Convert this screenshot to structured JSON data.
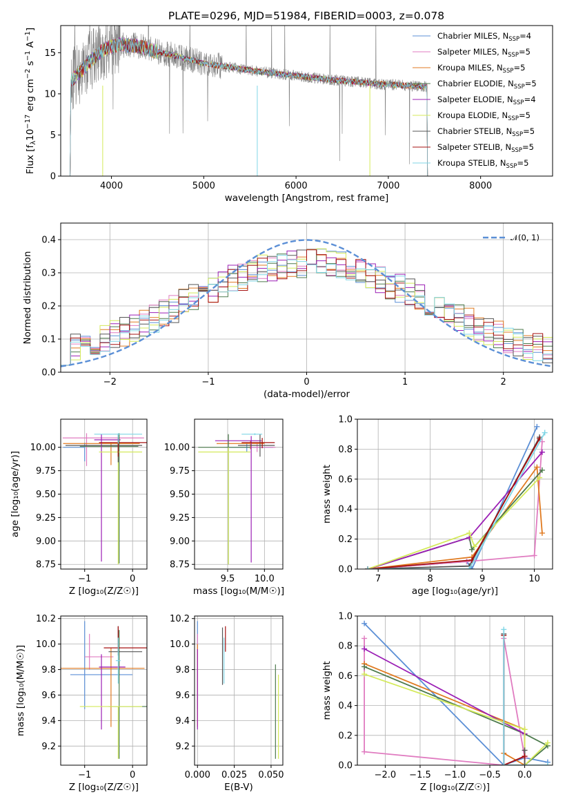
{
  "title": "PLATE=0296, MJD=51984, FIBERID=0003, z=0.078",
  "colors": {
    "Chabrier MILES": "#5b8fd6",
    "Salpeter MILES": "#e07bc0",
    "Kroupa MILES": "#e07a20",
    "Chabrier ELODIE": "#4c7a4c",
    "Salpeter ELODIE": "#9b1fb5",
    "Kroupa ELODIE": "#d4ea5a",
    "Chabrier STELIB": "#555555",
    "Salpeter STELIB": "#a51010",
    "Kroupa STELIB": "#7fd6e6",
    "data": "#808080",
    "gauss": "#5b8fd6"
  },
  "legend1": [
    {
      "text": "Chabrier MILES, N",
      "sub": "SSP",
      "tail": "=4",
      "key": "Chabrier MILES"
    },
    {
      "text": "Salpeter MILES, N",
      "sub": "SSP",
      "tail": "=5",
      "key": "Salpeter MILES"
    },
    {
      "text": "Kroupa MILES, N",
      "sub": "SSP",
      "tail": "=5",
      "key": "Kroupa MILES"
    },
    {
      "text": "Chabrier ELODIE, N",
      "sub": "SSP",
      "tail": "=5",
      "key": "Chabrier ELODIE"
    },
    {
      "text": "Salpeter ELODIE, N",
      "sub": "SSP",
      "tail": "=4",
      "key": "Salpeter ELODIE"
    },
    {
      "text": "Kroupa ELODIE, N",
      "sub": "SSP",
      "tail": "=5",
      "key": "Kroupa ELODIE"
    },
    {
      "text": "Chabrier STELIB, N",
      "sub": "SSP",
      "tail": "=5",
      "key": "Chabrier STELIB"
    },
    {
      "text": "Salpeter STELIB, N",
      "sub": "SSP",
      "tail": "=5",
      "key": "Salpeter STELIB"
    },
    {
      "text": "Kroupa STELIB, N",
      "sub": "SSP",
      "tail": "=5",
      "key": "Kroupa STELIB"
    }
  ],
  "legend2": "𝒩(0, 1)",
  "chart_data": [
    {
      "id": "spectrum",
      "type": "line",
      "xlabel": "wavelength [Angstrom, rest frame]",
      "ylabel_parts": [
        "Flux [f",
        "λ",
        "10",
        "−17",
        " erg cm",
        "−2",
        " s",
        "−1",
        " A",
        "−1",
        "]"
      ],
      "xlim": [
        3450,
        8780
      ],
      "ylim": [
        0,
        18.3
      ],
      "xticks": [
        4000,
        5000,
        6000,
        7000,
        8000
      ],
      "yticks": [
        0,
        5,
        10,
        15
      ],
      "continuum": [
        [
          3550,
          11.5
        ],
        [
          3650,
          12.5
        ],
        [
          3750,
          13.8
        ],
        [
          3850,
          14.8
        ],
        [
          3950,
          15.6
        ],
        [
          4100,
          16.0
        ],
        [
          4300,
          15.8
        ],
        [
          4500,
          15.1
        ],
        [
          4700,
          14.6
        ],
        [
          5000,
          13.7
        ],
        [
          5300,
          13.2
        ],
        [
          5600,
          12.7
        ],
        [
          6000,
          12.2
        ],
        [
          6300,
          11.8
        ],
        [
          6600,
          11.5
        ],
        [
          6900,
          11.2
        ],
        [
          7200,
          11.0
        ],
        [
          7400,
          10.9
        ],
        [
          7600,
          10.7
        ],
        [
          8000,
          10.5
        ],
        [
          8400,
          10.3
        ],
        [
          8780,
          10.2
        ]
      ]
    },
    {
      "id": "residuals",
      "type": "step-histogram",
      "xlabel": "(data-model)/error",
      "ylabel": "Normed distribution",
      "xlim": [
        -2.5,
        2.5
      ],
      "ylim": [
        0,
        0.45
      ],
      "xticks": [
        -2,
        -1,
        0,
        1,
        2
      ],
      "yticks": [
        0.0,
        0.1,
        0.2,
        0.3,
        0.4
      ],
      "bin_width": 0.1,
      "gaussian": {
        "mu": 0,
        "sigma": 1
      }
    },
    {
      "id": "age-vs-Z",
      "type": "errorbar",
      "xlabel": "Z [log₁₀(Z/Z☉)]",
      "ylabel": "age  [log₁₀(age/yr)]",
      "xlim": [
        -1.5,
        0.3
      ],
      "ylim": [
        8.7,
        10.3
      ],
      "xticks": [
        -1,
        0
      ],
      "yticks": [
        8.75,
        9.0,
        9.25,
        9.5,
        9.75,
        10.0
      ],
      "points": [
        {
          "model": "Chabrier MILES",
          "x": -1.0,
          "xerr": [
            0.45,
            0.0
          ],
          "y": 10.0,
          "yerr": [
            0.15,
            0.05
          ]
        },
        {
          "model": "Salpeter MILES",
          "x": -0.96,
          "xerr": [
            0.5,
            1.2
          ],
          "y": 10.1,
          "yerr": [
            0.3,
            0.05
          ]
        },
        {
          "model": "Kroupa MILES",
          "x": -0.45,
          "xerr": [
            1.0,
            0.6
          ],
          "y": 10.04,
          "yerr": [
            0.23,
            0.01
          ]
        },
        {
          "model": "Chabrier ELODIE",
          "x": -0.28,
          "xerr": [
            0.82,
            0.4
          ],
          "y": 10.01,
          "yerr": [
            1.25,
            0.14
          ]
        },
        {
          "model": "Salpeter ELODIE",
          "x": -0.65,
          "xerr": [
            0.15,
            0.4
          ],
          "y": 10.08,
          "yerr": [
            1.3,
            0.06
          ]
        },
        {
          "model": "Kroupa ELODIE",
          "x": -0.3,
          "xerr": [
            0.4,
            0.5
          ],
          "y": 9.95,
          "yerr": [
            1.2,
            0.05
          ]
        },
        {
          "model": "Chabrier STELIB",
          "x": -0.3,
          "xerr": [
            1.1,
            0.5
          ],
          "y": 10.02,
          "yerr": [
            0.18,
            0.12
          ]
        },
        {
          "model": "Salpeter STELIB",
          "x": -0.3,
          "xerr": [
            0.4,
            0.6
          ],
          "y": 10.05,
          "yerr": [
            0.15,
            0.05
          ]
        },
        {
          "model": "Kroupa STELIB",
          "x": -0.3,
          "xerr": [
            0.5,
            0.5
          ],
          "y": 10.14,
          "yerr": [
            0.1,
            0.01
          ]
        }
      ]
    },
    {
      "id": "age-vs-mass",
      "type": "errorbar",
      "xlabel": "mass [log₁₀(M/M☉)]",
      "ylabel": "",
      "xlim": [
        9.05,
        10.25
      ],
      "ylim": [
        8.7,
        10.3
      ],
      "xticks": [
        9.5,
        10.0
      ],
      "yticks": [
        8.75,
        9.0,
        9.25,
        9.5,
        9.75,
        10.0
      ],
      "points": [
        {
          "model": "Chabrier MILES",
          "x": 9.76,
          "xerr": [
            0.27,
            0.36
          ],
          "y": 10.0,
          "yerr": [
            0.05,
            0.05
          ]
        },
        {
          "model": "Salpeter MILES",
          "x": 9.9,
          "xerr": [
            0.1,
            0.25
          ],
          "y": 10.0,
          "yerr": [
            0.05,
            0.05
          ]
        },
        {
          "model": "Kroupa MILES",
          "x": 9.81,
          "xerr": [
            0.46,
            0.19
          ],
          "y": 10.04,
          "yerr": [
            0.06,
            0.03
          ]
        },
        {
          "model": "Chabrier ELODIE",
          "x": 9.51,
          "xerr": [
            0.41,
            0.3
          ],
          "y": 10.0,
          "yerr": [
            1.25,
            0.14
          ]
        },
        {
          "model": "Salpeter ELODIE",
          "x": 9.82,
          "xerr": [
            0.49,
            0.14
          ],
          "y": 10.07,
          "yerr": [
            1.3,
            0.05
          ]
        },
        {
          "model": "Kroupa ELODIE",
          "x": 9.51,
          "xerr": [
            0.41,
            0.3
          ],
          "y": 9.95,
          "yerr": [
            1.2,
            0.05
          ]
        },
        {
          "model": "Chabrier STELIB",
          "x": 9.94,
          "xerr": [
            0.3,
            0.2
          ],
          "y": 10.02,
          "yerr": [
            0.12,
            0.12
          ]
        },
        {
          "model": "Salpeter STELIB",
          "x": 9.97,
          "xerr": [
            0.28,
            0.17
          ],
          "y": 10.05,
          "yerr": [
            0.06,
            0.05
          ]
        },
        {
          "model": "Kroupa STELIB",
          "x": 9.87,
          "xerr": [
            0.18,
            0.1
          ],
          "y": 10.14,
          "yerr": [
            0.01,
            0.01
          ]
        }
      ]
    },
    {
      "id": "weight-vs-age",
      "type": "line",
      "xlabel": "age  [log₁₀(age/yr)]",
      "ylabel": "mass weight",
      "xlim": [
        6.6,
        10.35
      ],
      "ylim": [
        0,
        1.0
      ],
      "xticks": [
        7,
        8,
        9,
        10
      ],
      "yticks": [
        0.0,
        0.2,
        0.4,
        0.6,
        0.8,
        1.0
      ],
      "series": [
        {
          "model": "Chabrier MILES",
          "x": [
            6.8,
            8.7,
            8.8,
            10.05
          ],
          "y": [
            0.0,
            0.05,
            0.0,
            0.95
          ]
        },
        {
          "model": "Salpeter MILES",
          "x": [
            6.8,
            8.7,
            10.0,
            10.15
          ],
          "y": [
            0.0,
            0.05,
            0.09,
            0.85
          ]
        },
        {
          "model": "Kroupa MILES",
          "x": [
            6.8,
            8.8,
            10.05,
            10.15
          ],
          "y": [
            0.0,
            0.08,
            0.68,
            0.24
          ]
        },
        {
          "model": "Chabrier ELODIE",
          "x": [
            6.8,
            8.75,
            8.8,
            10.15
          ],
          "y": [
            0.0,
            0.21,
            0.13,
            0.66
          ]
        },
        {
          "model": "Salpeter ELODIE",
          "x": [
            6.8,
            8.75,
            10.15
          ],
          "y": [
            0.0,
            0.21,
            0.78
          ]
        },
        {
          "model": "Kroupa ELODIE",
          "x": [
            6.8,
            8.75,
            8.85,
            10.1
          ],
          "y": [
            0.0,
            0.24,
            0.15,
            0.61
          ]
        },
        {
          "model": "Chabrier STELIB",
          "x": [
            6.8,
            8.75,
            10.1
          ],
          "y": [
            0.0,
            0.02,
            0.88
          ]
        },
        {
          "model": "Salpeter STELIB",
          "x": [
            6.8,
            8.8,
            10.1
          ],
          "y": [
            0.0,
            0.06,
            0.87
          ]
        },
        {
          "model": "Kroupa STELIB",
          "x": [
            6.8,
            8.75,
            10.2
          ],
          "y": [
            0.0,
            0.0,
            0.91
          ]
        }
      ]
    },
    {
      "id": "mass-vs-Z",
      "type": "errorbar",
      "xlabel": "Z [log₁₀(Z/Z☉)]",
      "ylabel": "mass [log₁₀(M/M☉)]",
      "xlim": [
        -1.5,
        0.3
      ],
      "ylim": [
        9.05,
        10.22
      ],
      "xticks": [
        -1,
        0
      ],
      "yticks": [
        9.2,
        9.4,
        9.6,
        9.8,
        10.0,
        10.2
      ],
      "points": [
        {
          "model": "Chabrier MILES",
          "x": -1.0,
          "xerr": [
            0.3,
            1.0
          ],
          "y": 9.76,
          "yerr": [
            0.27,
            0.42
          ]
        },
        {
          "model": "Salpeter MILES",
          "x": -0.9,
          "xerr": [
            0.1,
            0.5
          ],
          "y": 9.9,
          "yerr": [
            0.1,
            0.18
          ]
        },
        {
          "model": "Kroupa MILES",
          "x": -0.45,
          "xerr": [
            1.05,
            0.7
          ],
          "y": 9.81,
          "yerr": [
            0.46,
            0.16
          ]
        },
        {
          "model": "Chabrier ELODIE",
          "x": -0.28,
          "xerr": [
            0.22,
            0.58
          ],
          "y": 9.51,
          "yerr": [
            0.41,
            0.6
          ]
        },
        {
          "model": "Salpeter ELODIE",
          "x": -0.65,
          "xerr": [
            0.05,
            0.5
          ],
          "y": 9.82,
          "yerr": [
            0.49,
            0.1
          ]
        },
        {
          "model": "Kroupa ELODIE",
          "x": -0.3,
          "xerr": [
            0.8,
            0.5
          ],
          "y": 9.51,
          "yerr": [
            0.41,
            0.0
          ]
        },
        {
          "model": "Chabrier STELIB",
          "x": -0.3,
          "xerr": [
            0.2,
            0.5
          ],
          "y": 9.94,
          "yerr": [
            0.03,
            0.2
          ]
        },
        {
          "model": "Salpeter STELIB",
          "x": -0.3,
          "xerr": [
            0.3,
            0.6
          ],
          "y": 9.97,
          "yerr": [
            0.03,
            0.17
          ]
        },
        {
          "model": "Kroupa STELIB",
          "x": -0.3,
          "xerr": [
            0.05,
            0.05
          ],
          "y": 9.87,
          "yerr": [
            0.18,
            0.18
          ]
        }
      ]
    },
    {
      "id": "mass-vs-ebv",
      "type": "errorbar",
      "xlabel": "E(B-V)",
      "ylabel": "",
      "xlim": [
        -0.002,
        0.058
      ],
      "ylim": [
        9.05,
        10.22
      ],
      "xticks": [
        0.0,
        0.025,
        0.05
      ],
      "xticklabels": [
        "0.000",
        "0.025",
        "0.050"
      ],
      "yticks": [
        9.2,
        9.4,
        9.6,
        9.8,
        10.0,
        10.2
      ],
      "points": [
        {
          "model": "Chabrier MILES",
          "x": 0.0,
          "xerr": [
            0,
            0
          ],
          "y": 9.76,
          "yerr": [
            0.27,
            0.42
          ]
        },
        {
          "model": "Salpeter MILES",
          "x": 0.0,
          "xerr": [
            0,
            0
          ],
          "y": 9.9,
          "yerr": [
            0.1,
            0.18
          ]
        },
        {
          "model": "Kroupa MILES",
          "x": 0.0,
          "xerr": [
            0,
            0
          ],
          "y": 9.81,
          "yerr": [
            0.46,
            0.19
          ]
        },
        {
          "model": "Chabrier ELODIE",
          "x": 0.053,
          "xerr": [
            0,
            0
          ],
          "y": 9.51,
          "yerr": [
            0.41,
            0.33
          ]
        },
        {
          "model": "Salpeter ELODIE",
          "x": 0.0,
          "xerr": [
            0,
            0
          ],
          "y": 9.82,
          "yerr": [
            0.49,
            0.14
          ]
        },
        {
          "model": "Kroupa ELODIE",
          "x": 0.055,
          "xerr": [
            0,
            0
          ],
          "y": 9.51,
          "yerr": [
            0.41,
            0.25
          ]
        },
        {
          "model": "Chabrier STELIB",
          "x": 0.017,
          "xerr": [
            0,
            0
          ],
          "y": 9.94,
          "yerr": [
            0.26,
            0.19
          ]
        },
        {
          "model": "Salpeter STELIB",
          "x": 0.019,
          "xerr": [
            0,
            0
          ],
          "y": 9.97,
          "yerr": [
            0.03,
            0.17
          ]
        },
        {
          "model": "Kroupa STELIB",
          "x": 0.018,
          "xerr": [
            0,
            0
          ],
          "y": 9.87,
          "yerr": [
            0.18,
            0.18
          ]
        }
      ]
    },
    {
      "id": "weight-vs-Z",
      "type": "line",
      "xlabel": "Z [log₁₀(Z/Z☉)]",
      "ylabel": "mass weight",
      "xlim": [
        -2.4,
        0.4
      ],
      "ylim": [
        0,
        1.0
      ],
      "xticks": [
        -2.0,
        -1.5,
        -1.0,
        -0.5,
        0.0
      ],
      "xticklabels": [
        "−2.0",
        "−1.5",
        "−1.0",
        "−0.5",
        "0.0"
      ],
      "yticks": [
        0.0,
        0.2,
        0.4,
        0.6,
        0.8,
        1.0
      ],
      "series": [
        {
          "model": "Chabrier MILES",
          "x": [
            -2.3,
            -0.3,
            0.0,
            0.33
          ],
          "y": [
            0.95,
            0.0,
            0.05,
            0.02
          ]
        },
        {
          "model": "Salpeter MILES",
          "x": [
            -2.3,
            -2.3,
            -0.3,
            -0.3,
            0.0
          ],
          "y": [
            0.85,
            0.09,
            0.0,
            0.85,
            0.05
          ]
        },
        {
          "model": "Kroupa MILES",
          "x": [
            -2.3,
            0.0,
            0.0,
            -0.3
          ],
          "y": [
            0.68,
            0.24,
            0.0,
            0.08
          ]
        },
        {
          "model": "Chabrier ELODIE",
          "x": [
            -2.3,
            0.0,
            0.33,
            0.0
          ],
          "y": [
            0.66,
            0.21,
            0.13,
            0.0
          ]
        },
        {
          "model": "Salpeter ELODIE",
          "x": [
            -2.3,
            0.0,
            0.0
          ],
          "y": [
            0.78,
            0.21,
            0.0
          ]
        },
        {
          "model": "Kroupa ELODIE",
          "x": [
            -2.3,
            0.0,
            0.0,
            0.33
          ],
          "y": [
            0.61,
            0.24,
            0.0,
            0.15
          ]
        },
        {
          "model": "Chabrier STELIB",
          "x": [
            -0.3,
            -0.3,
            0.0,
            0.0
          ],
          "y": [
            0.88,
            0.0,
            0.0,
            0.1
          ]
        },
        {
          "model": "Salpeter STELIB",
          "x": [
            -0.3,
            -0.3,
            0.0
          ],
          "y": [
            0.87,
            0.0,
            0.06
          ]
        },
        {
          "model": "Kroupa STELIB",
          "x": [
            -0.3,
            -0.3,
            0.33
          ],
          "y": [
            0.91,
            0.0,
            0.0
          ]
        }
      ]
    }
  ]
}
